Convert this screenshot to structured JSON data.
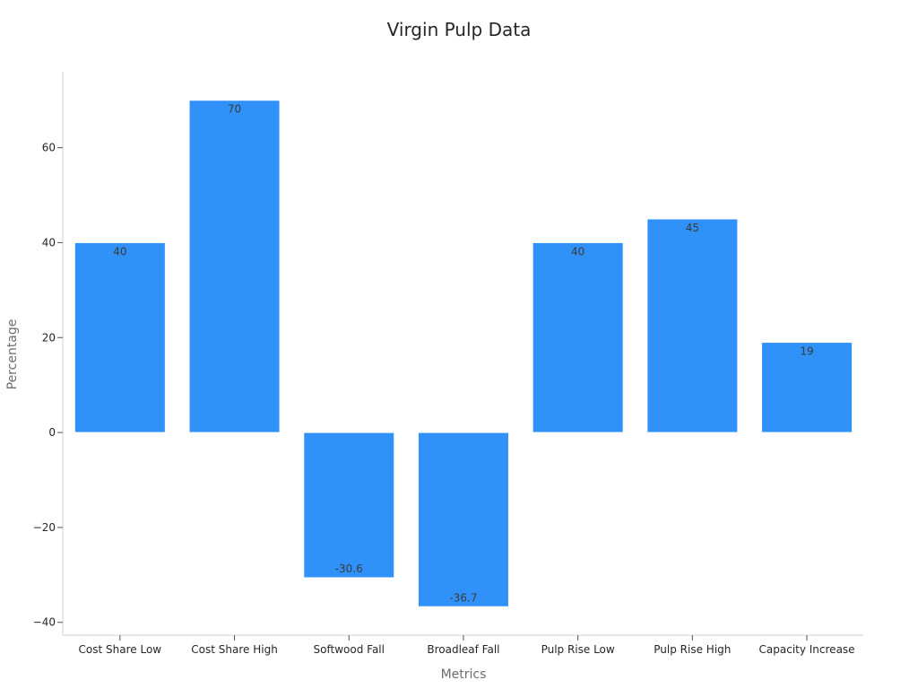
{
  "chart_data": {
    "type": "bar",
    "title": "Virgin Pulp Data",
    "xlabel": "Metrics",
    "ylabel": "Percentage",
    "categories": [
      "Cost Share Low",
      "Cost Share High",
      "Softwood Fall",
      "Broadleaf Fall",
      "Pulp Rise Low",
      "Pulp Rise High",
      "Capacity Increase"
    ],
    "values": [
      40,
      70,
      -30.6,
      -36.7,
      40,
      45,
      19
    ],
    "data_labels": [
      "40",
      "70",
      "-30.6",
      "-36.7",
      "40",
      "45",
      "19"
    ],
    "ylim": [
      -42.7,
      76
    ],
    "yticks": [
      -40,
      -20,
      0,
      20,
      40,
      60
    ],
    "ytick_labels": [
      "−40",
      "−20",
      "0",
      "20",
      "40",
      "60"
    ],
    "grid": false,
    "bar_color": "#3092f8"
  }
}
